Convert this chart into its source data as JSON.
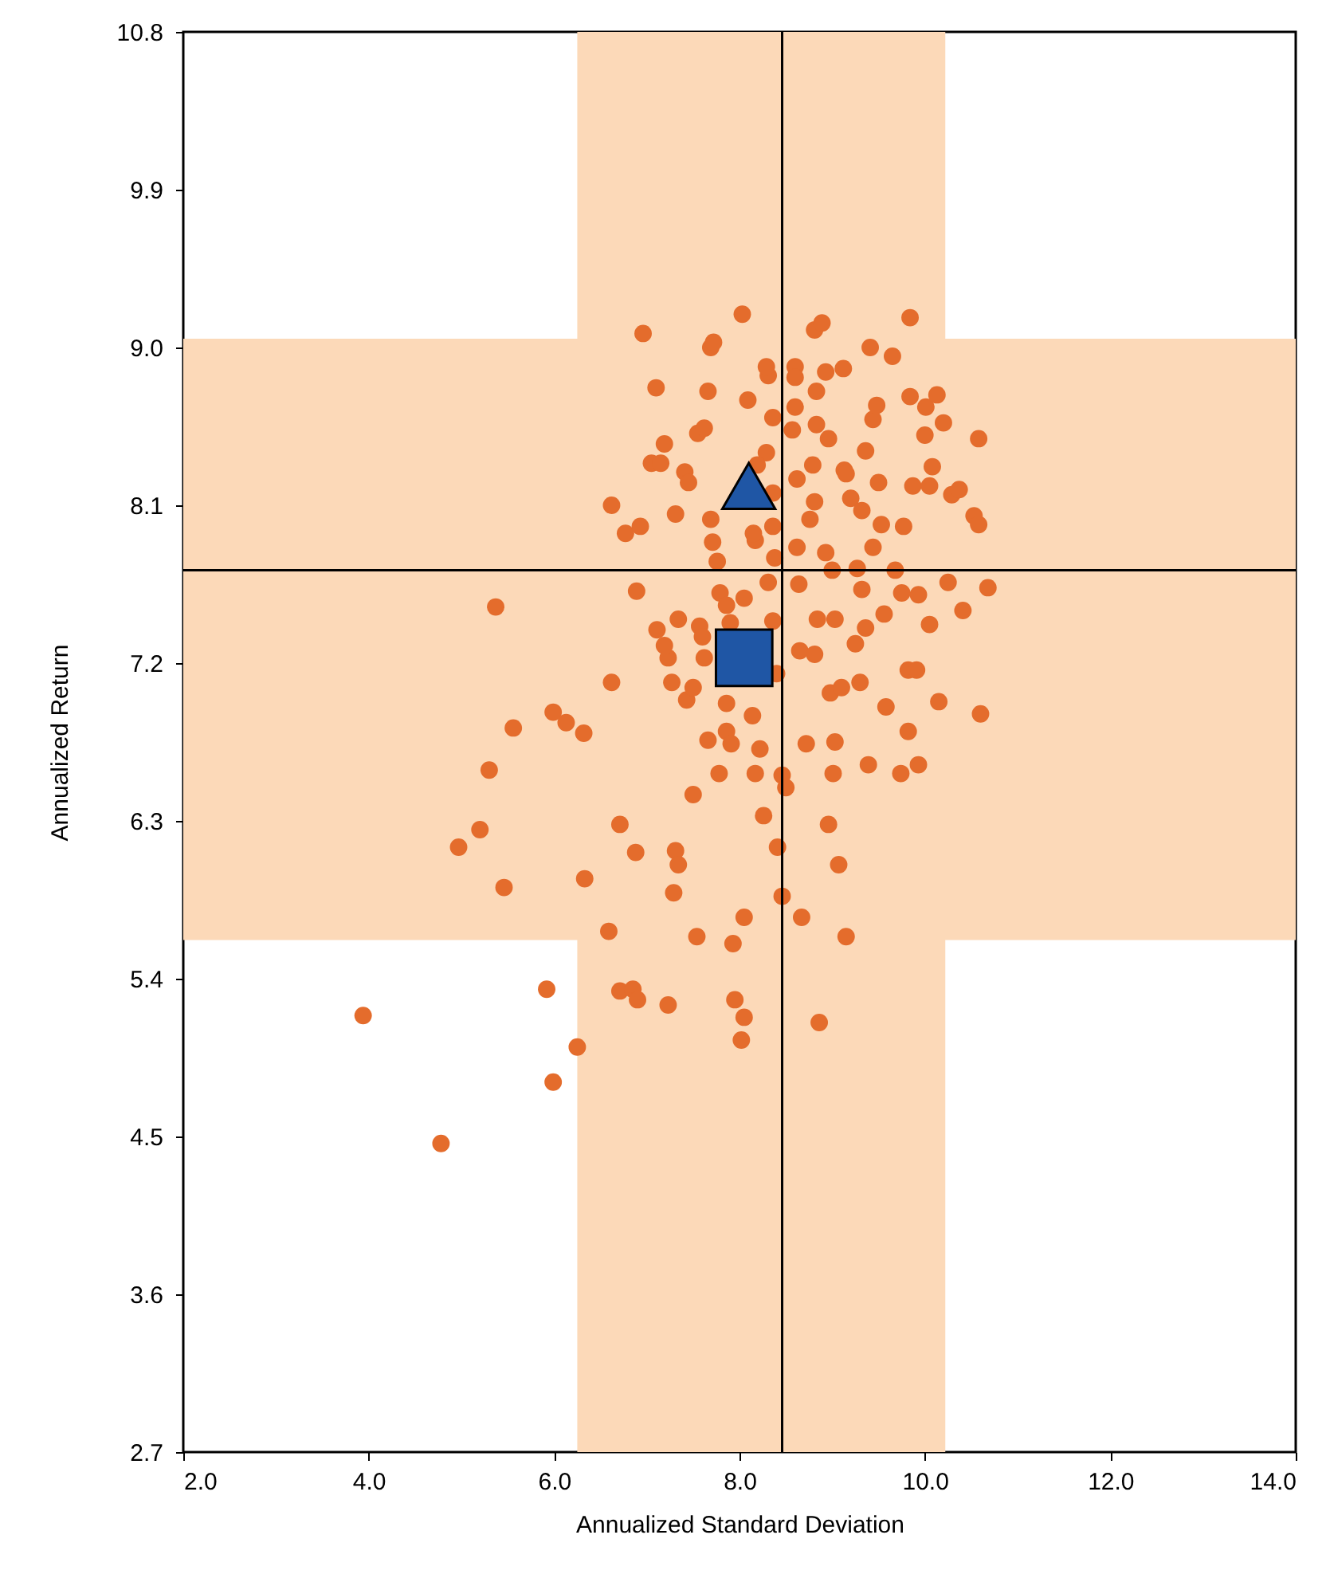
{
  "chart_data": {
    "type": "scatter",
    "xlabel": "Annualized Standard Deviation",
    "ylabel": "Annualized Return",
    "xlim": [
      2.0,
      14.0
    ],
    "ylim": [
      2.7,
      10.8
    ],
    "xticks": [
      {
        "value": 2,
        "label": "2.0"
      },
      {
        "value": 4,
        "label": "4.0"
      },
      {
        "value": 6,
        "label": "6.0"
      },
      {
        "value": 8,
        "label": "8.0"
      },
      {
        "value": 10,
        "label": "10.0"
      },
      {
        "value": 12,
        "label": "12.0"
      },
      {
        "value": 14,
        "label": "14.0"
      }
    ],
    "yticks": [
      2.7,
      3.6,
      4.5,
      5.4,
      6.3,
      7.2,
      8.1,
      {
        "value": 9,
        "label": "9.0"
      },
      9.9,
      10.8
    ],
    "grid": false,
    "bands": [
      {
        "axis": "x",
        "from": 6.25,
        "to": 10.22,
        "color": "#fcd9b8"
      },
      {
        "axis": "y",
        "from": 5.62,
        "to": 9.05,
        "color": "#fcd9b8"
      }
    ],
    "ref_lines": [
      {
        "axis": "x",
        "value": 8.46,
        "color": "#000000"
      },
      {
        "axis": "y",
        "value": 7.73,
        "color": "#000000"
      }
    ],
    "series": [
      {
        "color": "#e46c2c",
        "marker": "circle",
        "x": [
          5.37,
          5.56,
          5.3,
          5.2,
          4.97,
          5.46,
          5.99,
          6.13,
          6.32,
          6.33,
          5.92,
          6.25,
          5.99,
          3.94,
          4.78,
          6.62,
          6.59,
          6.71,
          6.71,
          6.85,
          6.9,
          6.88,
          7.23,
          7.31,
          7.34,
          7.29,
          7.54,
          6.62,
          6.77,
          6.93,
          6.89,
          6.96,
          7.1,
          7.19,
          7.05,
          7.15,
          7.11,
          7.23,
          7.19,
          7.27,
          7.34,
          7.31,
          7.41,
          7.45,
          7.55,
          7.62,
          7.66,
          7.69,
          7.72,
          7.43,
          7.5,
          7.57,
          7.6,
          7.62,
          7.5,
          7.66,
          7.69,
          7.71,
          7.76,
          7.79,
          7.86,
          7.9,
          7.86,
          7.86,
          7.91,
          7.78,
          7.93,
          7.95,
          8.05,
          8.02,
          8.05,
          8.03,
          8.09,
          8.05,
          8.14,
          8.17,
          8.22,
          8.26,
          8.29,
          8.31,
          8.29,
          8.36,
          8.36,
          8.36,
          8.38,
          8.31,
          8.36,
          8.4,
          8.41,
          8.46,
          8.46,
          8.5,
          8.6,
          8.6,
          8.57,
          8.6,
          8.62,
          8.62,
          8.64,
          8.65,
          8.67,
          8.72,
          8.76,
          8.79,
          8.81,
          8.84,
          8.81,
          8.86,
          8.83,
          8.83,
          8.81,
          8.89,
          8.93,
          8.96,
          8.93,
          9.0,
          8.98,
          9.01,
          8.96,
          9.03,
          9.07,
          9.1,
          9.03,
          9.15,
          9.12,
          9.13,
          9.2,
          9.27,
          9.32,
          9.25,
          9.3,
          9.39,
          9.36,
          9.32,
          9.36,
          9.41,
          9.44,
          9.48,
          9.5,
          9.53,
          9.56,
          9.58,
          9.65,
          9.68,
          9.74,
          9.75,
          9.77,
          9.82,
          9.82,
          9.84,
          9.84,
          9.87,
          9.91,
          9.93,
          10.0,
          10.01,
          10.05,
          10.05,
          10.08,
          10.13,
          10.2,
          10.25,
          10.29,
          10.37,
          10.41,
          10.53,
          10.58,
          10.58,
          10.6,
          10.68,
          10.15,
          9.93,
          9.44,
          9.15,
          8.19,
          8.17,
          8.15
        ],
        "values": [
          7.52,
          6.83,
          6.59,
          6.25,
          6.15,
          5.92,
          6.92,
          6.86,
          6.8,
          5.97,
          5.34,
          5.01,
          4.81,
          5.19,
          4.46,
          7.09,
          5.67,
          6.28,
          5.33,
          5.34,
          5.28,
          6.12,
          5.25,
          6.13,
          6.05,
          5.89,
          5.64,
          8.1,
          7.94,
          7.98,
          7.61,
          9.08,
          8.77,
          8.45,
          8.34,
          8.34,
          7.39,
          7.23,
          7.3,
          7.09,
          7.45,
          8.05,
          8.29,
          8.23,
          8.51,
          8.54,
          8.75,
          9.0,
          9.03,
          6.99,
          7.06,
          7.41,
          7.35,
          7.23,
          6.45,
          6.76,
          8.02,
          7.89,
          7.78,
          7.6,
          7.53,
          7.43,
          6.97,
          6.81,
          6.74,
          6.57,
          5.6,
          5.28,
          5.18,
          5.05,
          5.75,
          9.19,
          8.7,
          7.57,
          6.9,
          6.57,
          6.71,
          6.33,
          8.4,
          8.84,
          8.89,
          8.6,
          8.17,
          7.98,
          7.8,
          7.66,
          7.44,
          7.14,
          6.15,
          5.87,
          6.56,
          6.49,
          8.89,
          8.83,
          8.53,
          8.66,
          8.25,
          7.86,
          7.65,
          7.27,
          5.75,
          6.74,
          8.02,
          8.33,
          8.12,
          7.45,
          7.25,
          5.15,
          8.56,
          8.75,
          9.1,
          9.14,
          8.86,
          8.48,
          7.83,
          7.73,
          7.03,
          6.57,
          6.28,
          6.75,
          6.05,
          7.06,
          7.45,
          5.64,
          8.88,
          8.3,
          8.14,
          7.74,
          7.62,
          7.31,
          7.09,
          6.62,
          7.4,
          8.07,
          8.41,
          9.0,
          8.59,
          8.67,
          8.23,
          7.99,
          7.48,
          6.95,
          8.95,
          7.73,
          6.57,
          7.6,
          7.98,
          6.81,
          7.16,
          9.17,
          8.72,
          8.21,
          7.16,
          6.62,
          8.5,
          8.66,
          8.21,
          7.42,
          8.32,
          8.73,
          8.57,
          7.66,
          8.16,
          8.19,
          7.5,
          8.04,
          7.99,
          8.48,
          6.91,
          7.63,
          6.98,
          7.59,
          7.86,
          8.28,
          8.33,
          7.9,
          7.94
        ]
      },
      {
        "color": "#1f56a5",
        "marker": "triangle",
        "x": [
          8.1
        ],
        "values": [
          8.21
        ]
      },
      {
        "color": "#1f56a5",
        "marker": "square",
        "x": [
          8.05
        ],
        "values": [
          7.23
        ]
      }
    ]
  }
}
